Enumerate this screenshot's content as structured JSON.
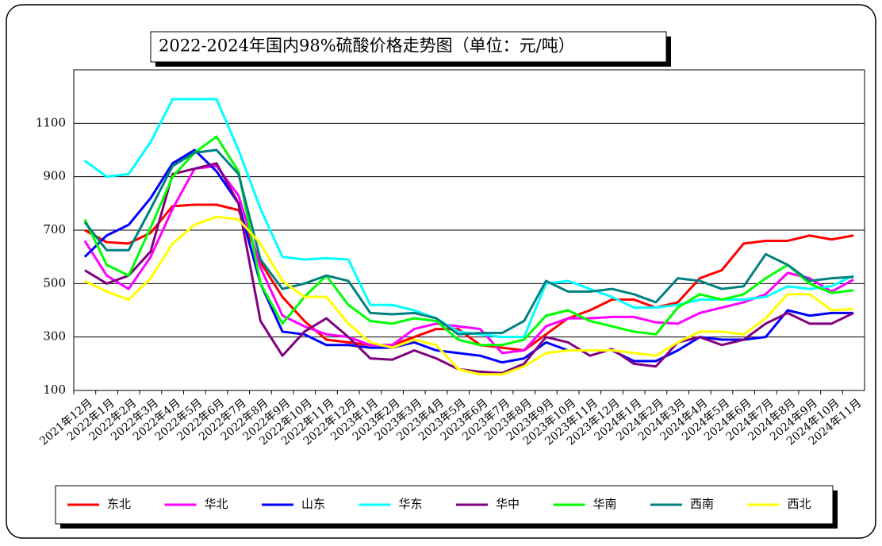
{
  "chart_data": {
    "type": "line",
    "title": "2022-2024年国内98%硫酸价格走势图（单位：元/吨）",
    "categories": [
      "2021年12月",
      "2022年1月",
      "2022年2月",
      "2022年3月",
      "2022年4月",
      "2022年5月",
      "2022年6月",
      "2022年7月",
      "2022年8月",
      "2022年9月",
      "2022年10月",
      "2022年11月",
      "2022年12月",
      "2023年1月",
      "2023年2月",
      "2023年3月",
      "2023年4月",
      "2023年5月",
      "2023年6月",
      "2023年7月",
      "2023年8月",
      "2023年9月",
      "2023年10月",
      "2023年11月",
      "2023年12月",
      "2024年1月",
      "2024年2月",
      "2024年3月",
      "2024年4月",
      "2024年5月",
      "2024年6月",
      "2024年7月",
      "2024年8月",
      "2024年9月",
      "2024年10月",
      "2024年11月"
    ],
    "series": [
      {
        "name": "东北",
        "color": "#ff0000",
        "values": [
          700,
          655,
          650,
          690,
          790,
          795,
          795,
          775,
          580,
          450,
          360,
          290,
          280,
          270,
          270,
          300,
          330,
          330,
          270,
          260,
          250,
          310,
          370,
          400,
          440,
          440,
          410,
          430,
          520,
          550,
          650,
          660,
          660,
          680,
          665,
          680
        ]
      },
      {
        "name": "华北",
        "color": "#ff00ff",
        "values": [
          660,
          530,
          480,
          600,
          780,
          930,
          940,
          830,
          560,
          380,
          340,
          310,
          300,
          270,
          270,
          330,
          350,
          340,
          330,
          240,
          250,
          340,
          370,
          370,
          375,
          375,
          355,
          350,
          390,
          410,
          430,
          460,
          540,
          520,
          470,
          515
        ]
      },
      {
        "name": "山东",
        "color": "#0000ff",
        "values": [
          600,
          680,
          720,
          820,
          950,
          1000,
          920,
          800,
          500,
          320,
          310,
          270,
          270,
          260,
          260,
          280,
          250,
          240,
          230,
          205,
          220,
          280,
          250,
          250,
          250,
          210,
          210,
          250,
          300,
          290,
          290,
          300,
          400,
          380,
          390,
          390
        ]
      },
      {
        "name": "华东",
        "color": "#00ffff",
        "values": [
          960,
          900,
          910,
          1030,
          1190,
          1190,
          1190,
          1000,
          780,
          600,
          590,
          595,
          590,
          420,
          420,
          400,
          370,
          320,
          310,
          300,
          300,
          500,
          510,
          480,
          450,
          410,
          410,
          420,
          440,
          440,
          440,
          450,
          490,
          480,
          490,
          530
        ]
      },
      {
        "name": "华中",
        "color": "#800080",
        "values": [
          550,
          500,
          530,
          620,
          910,
          930,
          950,
          800,
          360,
          230,
          320,
          370,
          300,
          220,
          215,
          250,
          220,
          180,
          170,
          165,
          200,
          300,
          280,
          230,
          255,
          200,
          190,
          280,
          300,
          270,
          290,
          350,
          390,
          350,
          350,
          390
        ]
      },
      {
        "name": "华南",
        "color": "#00ff00",
        "values": [
          740,
          570,
          530,
          710,
          900,
          990,
          1050,
          920,
          500,
          350,
          450,
          530,
          420,
          360,
          350,
          370,
          360,
          290,
          270,
          270,
          290,
          380,
          400,
          360,
          340,
          320,
          310,
          410,
          460,
          440,
          460,
          520,
          570,
          500,
          465,
          475
        ]
      },
      {
        "name": "西南",
        "color": "#008080",
        "values": [
          730,
          625,
          625,
          780,
          940,
          990,
          1000,
          910,
          590,
          480,
          500,
          530,
          510,
          390,
          385,
          390,
          370,
          310,
          315,
          315,
          360,
          510,
          470,
          470,
          480,
          460,
          430,
          520,
          510,
          480,
          490,
          610,
          570,
          510,
          520,
          525
        ]
      },
      {
        "name": "西北",
        "color": "#ffff00",
        "values": [
          510,
          470,
          440,
          520,
          650,
          720,
          750,
          740,
          650,
          510,
          450,
          450,
          350,
          280,
          260,
          290,
          270,
          180,
          160,
          160,
          190,
          240,
          250,
          250,
          250,
          240,
          230,
          280,
          320,
          320,
          310,
          370,
          460,
          460,
          400,
          405
        ]
      }
    ],
    "ylim": [
      100,
      1300
    ],
    "yticks": [
      100,
      300,
      500,
      700,
      900,
      1100
    ],
    "grid": true
  }
}
